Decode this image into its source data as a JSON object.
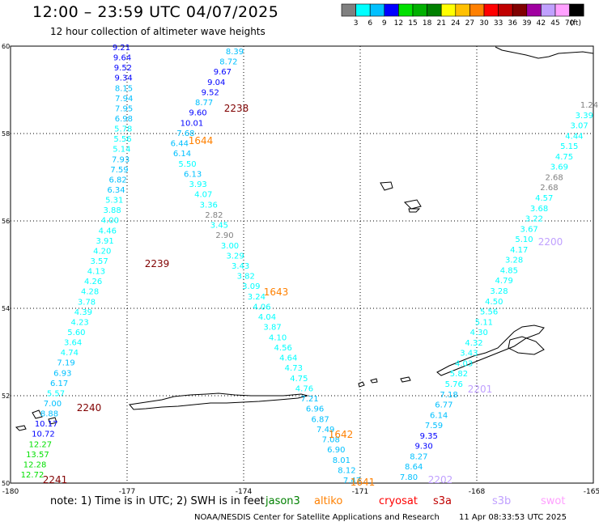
{
  "header": {
    "title": "12:00 – 23:59 UTC 04/07/2025",
    "subtitle": "12 hour collection of altimeter wave heights"
  },
  "colorbar": {
    "unit_label": "(ft)",
    "bins": [
      {
        "label": "3",
        "color": "#808080"
      },
      {
        "label": "6",
        "color": "#00ffff"
      },
      {
        "label": "9",
        "color": "#00c0ff"
      },
      {
        "label": "12",
        "color": "#0000ff"
      },
      {
        "label": "15",
        "color": "#00e000"
      },
      {
        "label": "18",
        "color": "#00b000"
      },
      {
        "label": "21",
        "color": "#008000"
      },
      {
        "label": "24",
        "color": "#ffff00"
      },
      {
        "label": "27",
        "color": "#ffc000"
      },
      {
        "label": "30",
        "color": "#ff8000"
      },
      {
        "label": "33",
        "color": "#ff0000"
      },
      {
        "label": "36",
        "color": "#c00000"
      },
      {
        "label": "39",
        "color": "#800000"
      },
      {
        "label": "42",
        "color": "#a000a0"
      },
      {
        "label": "45",
        "color": "#c0a0ff"
      },
      {
        "label": "70",
        "color": "#ffa0ff"
      },
      {
        "label": "",
        "color": "#000000"
      }
    ]
  },
  "map": {
    "lon_ticks": [
      "-180",
      "-177",
      "-174",
      "-171",
      "-168",
      "-165"
    ],
    "lat_ticks": [
      "50",
      "52",
      "54",
      "56",
      "58",
      "60"
    ],
    "lon_range": [
      -180,
      -165
    ],
    "lat_range": [
      50,
      60
    ],
    "pass_times": [
      {
        "label": "2238",
        "color": "#800000"
      },
      {
        "label": "1644",
        "color": "#ff8000"
      },
      {
        "label": "2239",
        "color": "#800000"
      },
      {
        "label": "1643",
        "color": "#ff8000"
      },
      {
        "label": "2240",
        "color": "#800000"
      },
      {
        "label": "1642",
        "color": "#ff8000"
      },
      {
        "label": "2241",
        "color": "#800000"
      },
      {
        "label": "1641",
        "color": "#ff8000"
      },
      {
        "label": "2200",
        "color": "#c0a0ff"
      },
      {
        "label": "2201",
        "color": "#c0a0ff"
      },
      {
        "label": "2202",
        "color": "#c0a0ff"
      }
    ],
    "track_a": [
      "9.21",
      "9.64",
      "9.52",
      "9.34",
      "8.15",
      "7.94",
      "7.95",
      "6.98",
      "5.78",
      "5.56",
      "5.14",
      "7.93",
      "7.59",
      "6.82",
      "6.34",
      "5.31",
      "3.88",
      "4.00",
      "4.46",
      "3.91",
      "4.20",
      "3.57",
      "4.13",
      "4.26",
      "4.28",
      "3.78",
      "4.39",
      "4.23",
      "5.60",
      "3.64",
      "4.74",
      "7.19",
      "6.93",
      "6.17",
      "5.57",
      "7.00",
      "8.88",
      "10.17",
      "10.72",
      "12.27",
      "13.57",
      "12.28",
      "12.72"
    ],
    "track_b": [
      "8.39",
      "8.72",
      "9.67",
      "9.04",
      "9.52",
      "8.77",
      "9.60",
      "10.01",
      "7.68",
      "6.44",
      "6.14",
      "5.50",
      "6.13",
      "3.93",
      "4.07",
      "3.36",
      "2.82",
      "3.45",
      "2.90",
      "3.00",
      "3.29",
      "3.43",
      "3.82",
      "3.09",
      "3.24",
      "4.06",
      "4.04",
      "3.87",
      "4.10",
      "4.56",
      "4.64",
      "4.73",
      "4.75",
      "4.76",
      "7.21",
      "6.96",
      "6.87",
      "7.49",
      "7.08",
      "6.90",
      "8.01",
      "8.12",
      "7.47"
    ],
    "track_c": [
      "1.24",
      "3.39",
      "3.07",
      "4.44",
      "5.15",
      "4.75",
      "3.69",
      "2.68",
      "2.68",
      "4.57",
      "3.68",
      "3.22",
      "3.67",
      "5.10",
      "4.17",
      "3.28",
      "4.85",
      "4.79",
      "3.28",
      "4.50",
      "5.56",
      "5.11",
      "4.30",
      "4.32",
      "3.43",
      "4.03",
      "5.82",
      "5.76",
      "7.18",
      "6.77",
      "6.14",
      "7.59",
      "9.35",
      "9.30",
      "8.27",
      "8.64",
      "7.80"
    ]
  },
  "satellite_legend": {
    "note": "note: 1) Time is in UTC; 2) SWH is in feet",
    "sats": [
      {
        "label": "jason3",
        "color": "#008000"
      },
      {
        "label": "altiko",
        "color": "#ff8000"
      },
      {
        "label": "cryosat",
        "color": "#ff0000"
      },
      {
        "label": "s3a",
        "color": "#c00000"
      },
      {
        "label": "s3b",
        "color": "#c0a0ff"
      },
      {
        "label": "swot",
        "color": "#ffa0ff"
      }
    ]
  },
  "footer": {
    "credit": "NOAA/NESDIS Center for Satellite Applications and Research",
    "date": "11 Apr 08:33:53 UTC 2025"
  }
}
